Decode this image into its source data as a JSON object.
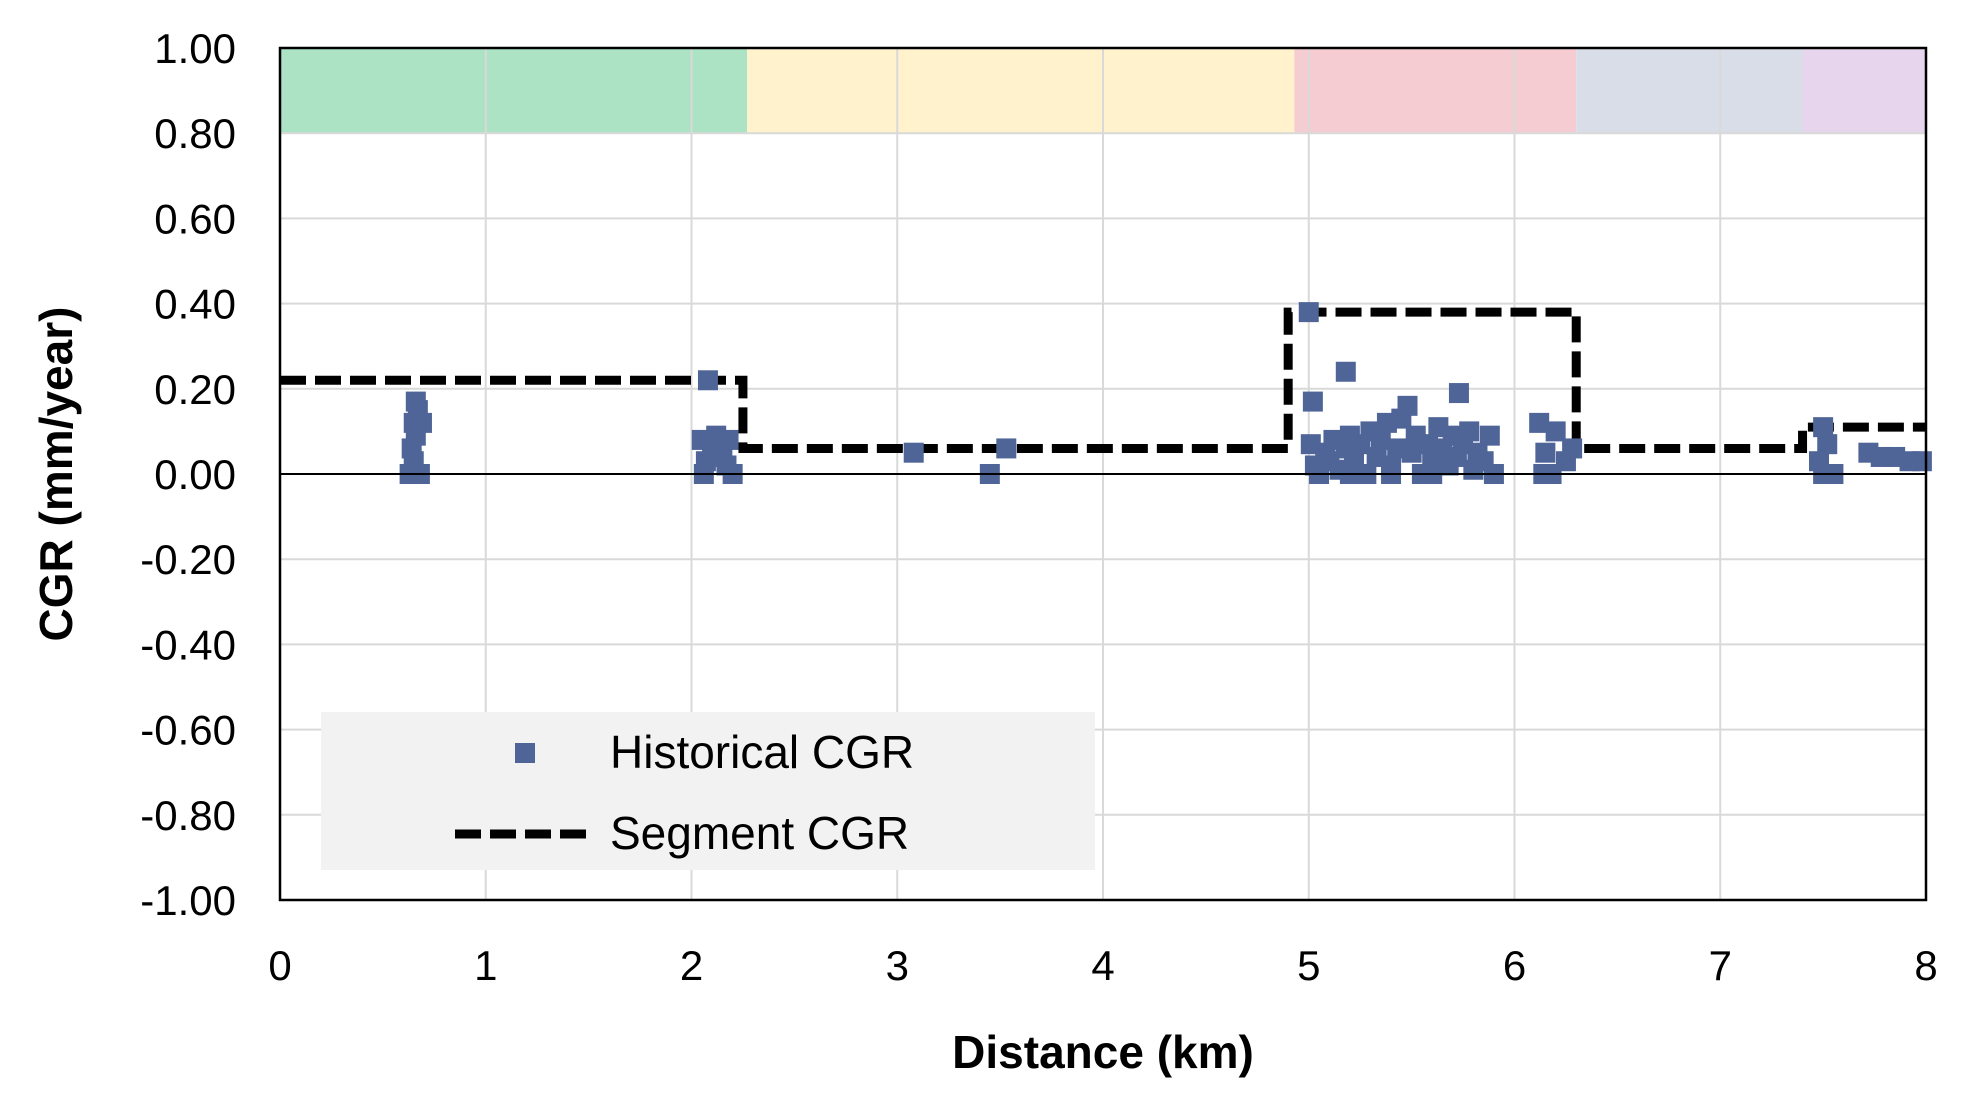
{
  "chart_data": {
    "type": "scatter",
    "xlabel": "Distance (km)",
    "ylabel": "CGR (mm/year)",
    "xlim": [
      0,
      8
    ],
    "ylim": [
      -1.0,
      1.0
    ],
    "x_ticks": [
      "0",
      "1",
      "2",
      "3",
      "4",
      "5",
      "6",
      "7",
      "8"
    ],
    "y_ticks": [
      "1.00",
      "0.80",
      "0.60",
      "0.40",
      "0.20",
      "0.00",
      "-0.20",
      "-0.40",
      "-0.60",
      "-0.80",
      "-1.00"
    ],
    "grid": true,
    "legend_placement": "bottom-left",
    "bands": [
      {
        "x0": 0,
        "x1": 2.27,
        "y0": 0.8,
        "y1": 1.0,
        "color": "#ABE3C4"
      },
      {
        "x0": 2.27,
        "x1": 4.93,
        "y0": 0.8,
        "y1": 1.0,
        "color": "#FFF2CC"
      },
      {
        "x0": 4.93,
        "x1": 6.3,
        "y0": 0.8,
        "y1": 1.0,
        "color": "#F4CCD1"
      },
      {
        "x0": 6.3,
        "x1": 7.4,
        "y0": 0.8,
        "y1": 1.0,
        "color": "#D9DDE8"
      },
      {
        "x0": 7.4,
        "x1": 8.0,
        "y0": 0.8,
        "y1": 1.0,
        "color": "#E6D5EC"
      }
    ],
    "series": [
      {
        "name": "Historical CGR",
        "kind": "scatter",
        "color": "#4F6598",
        "points": [
          [
            0.63,
            0.0
          ],
          [
            0.65,
            0.03
          ],
          [
            0.64,
            0.06
          ],
          [
            0.66,
            0.09
          ],
          [
            0.65,
            0.12
          ],
          [
            0.67,
            0.15
          ],
          [
            0.66,
            0.17
          ],
          [
            0.69,
            0.12
          ],
          [
            0.68,
            0.0
          ],
          [
            2.08,
            0.22
          ],
          [
            2.05,
            0.08
          ],
          [
            2.07,
            0.03
          ],
          [
            2.06,
            0.0
          ],
          [
            2.1,
            0.06
          ],
          [
            2.12,
            0.09
          ],
          [
            2.15,
            0.04
          ],
          [
            2.18,
            0.08
          ],
          [
            2.2,
            0.0
          ],
          [
            2.17,
            0.02
          ],
          [
            3.08,
            0.05
          ],
          [
            3.45,
            0.0
          ],
          [
            3.53,
            0.06
          ],
          [
            5.0,
            0.38
          ],
          [
            5.02,
            0.17
          ],
          [
            5.18,
            0.24
          ],
          [
            5.73,
            0.19
          ],
          [
            5.01,
            0.07
          ],
          [
            5.03,
            0.02
          ],
          [
            5.05,
            0.0
          ],
          [
            5.08,
            0.05
          ],
          [
            5.1,
            0.03
          ],
          [
            5.12,
            0.08
          ],
          [
            5.15,
            0.01
          ],
          [
            5.18,
            0.06
          ],
          [
            5.2,
            0.09
          ],
          [
            5.22,
            0.03
          ],
          [
            5.25,
            0.07
          ],
          [
            5.28,
            0.0
          ],
          [
            5.3,
            0.1
          ],
          [
            5.33,
            0.04
          ],
          [
            5.35,
            0.08
          ],
          [
            5.38,
            0.12
          ],
          [
            5.4,
            0.02
          ],
          [
            5.43,
            0.06
          ],
          [
            5.45,
            0.13
          ],
          [
            5.48,
            0.16
          ],
          [
            5.5,
            0.05
          ],
          [
            5.52,
            0.09
          ],
          [
            5.55,
            0.0
          ],
          [
            5.58,
            0.07
          ],
          [
            5.6,
            0.03
          ],
          [
            5.63,
            0.11
          ],
          [
            5.65,
            0.06
          ],
          [
            5.68,
            0.02
          ],
          [
            5.7,
            0.09
          ],
          [
            5.72,
            0.04
          ],
          [
            5.75,
            0.07
          ],
          [
            5.78,
            0.1
          ],
          [
            5.8,
            0.01
          ],
          [
            5.82,
            0.05
          ],
          [
            5.85,
            0.03
          ],
          [
            5.88,
            0.09
          ],
          [
            5.9,
            0.0
          ],
          [
            5.4,
            0.0
          ],
          [
            5.6,
            0.0
          ],
          [
            5.2,
            0.0
          ],
          [
            6.12,
            0.12
          ],
          [
            6.15,
            0.05
          ],
          [
            6.2,
            0.1
          ],
          [
            6.25,
            0.03
          ],
          [
            6.18,
            0.0
          ],
          [
            6.28,
            0.06
          ],
          [
            6.14,
            0.0
          ],
          [
            7.5,
            0.11
          ],
          [
            7.52,
            0.07
          ],
          [
            7.48,
            0.03
          ],
          [
            7.55,
            0.0
          ],
          [
            7.5,
            0.0
          ],
          [
            7.72,
            0.05
          ],
          [
            7.78,
            0.04
          ],
          [
            7.85,
            0.04
          ],
          [
            7.92,
            0.03
          ],
          [
            7.98,
            0.03
          ]
        ]
      },
      {
        "name": "Segment CGR",
        "kind": "step-line",
        "color": "#000000",
        "points": [
          [
            0,
            0.22
          ],
          [
            2.25,
            0.22
          ],
          [
            2.25,
            0.06
          ],
          [
            4.9,
            0.06
          ],
          [
            4.9,
            0.38
          ],
          [
            6.3,
            0.38
          ],
          [
            6.3,
            0.06
          ],
          [
            7.4,
            0.06
          ],
          [
            7.4,
            0.11
          ],
          [
            8,
            0.11
          ]
        ]
      }
    ]
  }
}
